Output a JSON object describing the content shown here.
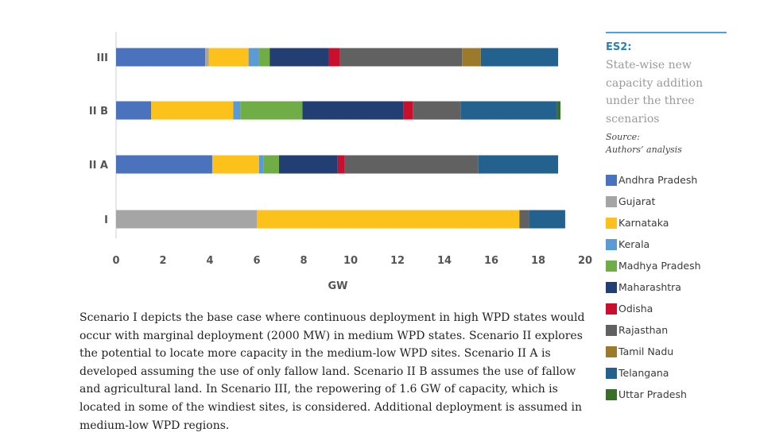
{
  "chart_data": {
    "type": "bar",
    "orientation": "horizontal",
    "stacked": true,
    "categories": [
      "III",
      "II B",
      "II A",
      "I"
    ],
    "series": [
      {
        "name": "Andhra Pradesh",
        "color": "#4a72bd",
        "values": [
          3.8,
          1.5,
          4.1,
          0
        ]
      },
      {
        "name": "Gujarat",
        "color": "#a5a5a5",
        "values": [
          0.15,
          0,
          0,
          6.0
        ]
      },
      {
        "name": "Karnataka",
        "color": "#fcc21b",
        "values": [
          1.7,
          3.5,
          2.0,
          11.2
        ]
      },
      {
        "name": "Kerala",
        "color": "#5b9bd5",
        "values": [
          0.45,
          0.3,
          0.2,
          0
        ]
      },
      {
        "name": "Madhya Pradesh",
        "color": "#70ad47",
        "values": [
          0.45,
          2.65,
          0.65,
          0
        ]
      },
      {
        "name": "Maharashtra",
        "color": "#223e73",
        "values": [
          2.5,
          4.3,
          2.5,
          0
        ]
      },
      {
        "name": "Odisha",
        "color": "#c8102e",
        "values": [
          0.5,
          0.4,
          0.3,
          0
        ]
      },
      {
        "name": "Rajasthan",
        "color": "#616161",
        "values": [
          5.2,
          2.05,
          5.7,
          0.4
        ]
      },
      {
        "name": "Tamil Nadu",
        "color": "#9c7a2c",
        "values": [
          0.8,
          0,
          0,
          0
        ]
      },
      {
        "name": "Telangana",
        "color": "#23618f",
        "values": [
          3.3,
          4.1,
          3.4,
          1.55
        ]
      },
      {
        "name": "Uttar Pradesh",
        "color": "#3b6e2a",
        "values": [
          0,
          0.15,
          0,
          0
        ]
      }
    ],
    "xlabel": "GW",
    "ylabel": "",
    "xlim": [
      0,
      20
    ],
    "xticks": [
      0,
      2,
      4,
      6,
      8,
      10,
      12,
      14,
      16,
      18,
      20
    ],
    "grid": false,
    "legend_position": "right"
  },
  "sidebar": {
    "title": "ES2:",
    "subtitle": "State-wise new capacity addition under the three scenarios",
    "source_label": "Source:",
    "source_text": "Authors’ analysis"
  },
  "caption": "Scenario I depicts the base case where continuous deployment in high WPD states would occur with marginal deployment (2000 MW) in medium WPD states. Scenario II explores the potential to locate more capacity in the medium-low WPD sites. Scenario II A is developed assuming the use of only fallow land. Scenario II B assumes the use of fallow and agricultural land. In Scenario III, the repowering of 1.6 GW of capacity, which is located in some of the windiest sites, is considered. Additional deployment is assumed in medium-low WPD regions."
}
